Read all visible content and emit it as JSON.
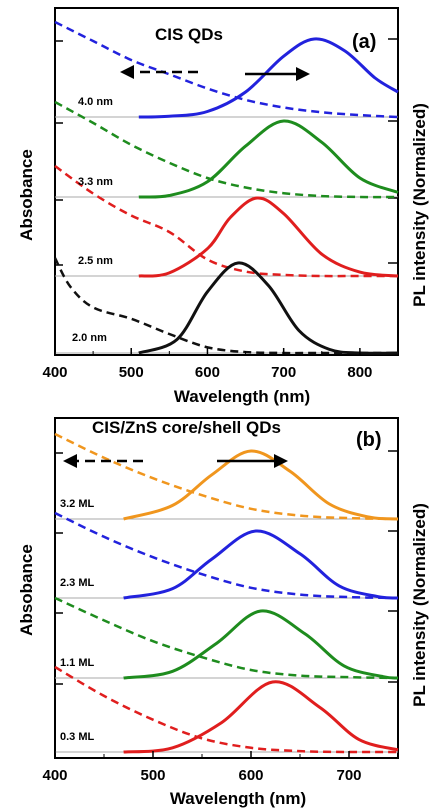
{
  "chart_data": [
    {
      "type": "line",
      "panel_label": "(a)",
      "title": "CIS QDs",
      "xlabel": "Wavelength (nm)",
      "ylabel_left": "Absobance",
      "ylabel_right": "PL intensity (Normalized)",
      "xlim": [
        400,
        850
      ],
      "x_ticks": [
        400,
        500,
        600,
        700,
        800
      ],
      "arrows": [
        "left (absorbance, dashed)",
        "right (PL, solid)"
      ],
      "series": [
        {
          "name": "4.0 nm",
          "color": "#2222dd",
          "absorbance": {
            "x": [
              400,
              450,
              500,
              550,
              600,
              650,
              700,
              750,
              800,
              850
            ],
            "y": [
              1.0,
              0.8,
              0.6,
              0.45,
              0.3,
              0.18,
              0.1,
              0.05,
              0.02,
              0.0
            ]
          },
          "pl": {
            "x": [
              510,
              550,
              600,
              650,
              700,
              740,
              780,
              820,
              850
            ],
            "y": [
              0.0,
              0.01,
              0.07,
              0.32,
              0.78,
              1.0,
              0.85,
              0.5,
              0.32
            ]
          }
        },
        {
          "name": "3.3 nm",
          "color": "#1e8c1e",
          "absorbance": {
            "x": [
              400,
              450,
              500,
              550,
              600,
              650,
              700,
              750,
              800,
              850
            ],
            "y": [
              1.0,
              0.78,
              0.55,
              0.36,
              0.2,
              0.1,
              0.04,
              0.01,
              0.0,
              0.0
            ]
          },
          "pl": {
            "x": [
              510,
              550,
              600,
              650,
              700,
              750,
              800,
              850
            ],
            "y": [
              0.0,
              0.02,
              0.2,
              0.67,
              1.0,
              0.72,
              0.25,
              0.06
            ]
          }
        },
        {
          "name": "2.5 nm",
          "color": "#e01e1e",
          "absorbance": {
            "x": [
              400,
              450,
              500,
              550,
              600,
              650,
              700,
              750,
              800,
              850
            ],
            "y": [
              1.0,
              0.75,
              0.55,
              0.4,
              0.15,
              0.04,
              0.01,
              0.0,
              0.0,
              0.0
            ]
          },
          "pl": {
            "x": [
              510,
              550,
              600,
              630,
              665,
              700,
              750,
              800,
              850
            ],
            "y": [
              0.0,
              0.04,
              0.35,
              0.75,
              1.0,
              0.8,
              0.28,
              0.05,
              0.0
            ]
          }
        },
        {
          "name": "2.0 nm",
          "color": "#111111",
          "absorbance": {
            "x": [
              400,
              420,
              450,
              500,
              550,
              600,
              650,
              700,
              750,
              850
            ],
            "y": [
              1.0,
              0.7,
              0.48,
              0.36,
              0.2,
              0.06,
              0.01,
              0.0,
              0.0,
              0.0
            ]
          },
          "pl": {
            "x": [
              510,
              560,
              600,
              640,
              680,
              720,
              760,
              800,
              850
            ],
            "y": [
              0.0,
              0.15,
              0.68,
              1.0,
              0.75,
              0.25,
              0.04,
              0.0,
              0.0
            ]
          }
        }
      ]
    },
    {
      "type": "line",
      "panel_label": "(b)",
      "title": "CIS/ZnS core/shell QDs",
      "xlabel": "Wavelength (nm)",
      "ylabel_left": "Absobance",
      "ylabel_right": "PL intensity (Normalized)",
      "xlim": [
        400,
        750
      ],
      "x_ticks": [
        400,
        500,
        600,
        700
      ],
      "arrows": [
        "left (absorbance, dashed)",
        "right (PL, solid)"
      ],
      "series": [
        {
          "name": "3.2 ML",
          "color": "#f0961e",
          "absorbance": {
            "x": [
              400,
              450,
              500,
              550,
              600,
              650,
              700,
              750
            ],
            "y": [
              1.0,
              0.72,
              0.48,
              0.28,
              0.12,
              0.04,
              0.01,
              0.0
            ]
          },
          "pl": {
            "x": [
              470,
              520,
              560,
              600,
              640,
              680,
              720,
              750
            ],
            "y": [
              0.0,
              0.2,
              0.65,
              1.0,
              0.7,
              0.22,
              0.03,
              0.0
            ]
          }
        },
        {
          "name": "2.3 ML",
          "color": "#2222dd",
          "absorbance": {
            "x": [
              400,
              450,
              500,
              550,
              600,
              650,
              700,
              750
            ],
            "y": [
              1.0,
              0.72,
              0.48,
              0.28,
              0.12,
              0.04,
              0.01,
              0.0
            ]
          },
          "pl": {
            "x": [
              470,
              520,
              560,
              605,
              650,
              690,
              730,
              750
            ],
            "y": [
              0.0,
              0.14,
              0.58,
              1.0,
              0.66,
              0.18,
              0.02,
              0.0
            ]
          }
        },
        {
          "name": "1.1 ML",
          "color": "#1e8c1e",
          "absorbance": {
            "x": [
              400,
              450,
              500,
              550,
              600,
              650,
              700,
              750
            ],
            "y": [
              1.0,
              0.72,
              0.46,
              0.26,
              0.1,
              0.03,
              0.01,
              0.0
            ]
          },
          "pl": {
            "x": [
              470,
              520,
              565,
              610,
              655,
              695,
              735,
              750
            ],
            "y": [
              0.0,
              0.1,
              0.52,
              1.0,
              0.66,
              0.18,
              0.02,
              0.0
            ]
          }
        },
        {
          "name": "0.3 ML",
          "color": "#e01e1e",
          "absorbance": {
            "x": [
              400,
              450,
              500,
              550,
              600,
              650,
              700,
              750
            ],
            "y": [
              1.0,
              0.66,
              0.38,
              0.16,
              0.05,
              0.01,
              0.0,
              0.0
            ]
          },
          "pl": {
            "x": [
              470,
              520,
              570,
              622,
              670,
              710,
              750
            ],
            "y": [
              0.0,
              0.06,
              0.42,
              1.0,
              0.64,
              0.18,
              0.03
            ]
          }
        }
      ]
    }
  ]
}
